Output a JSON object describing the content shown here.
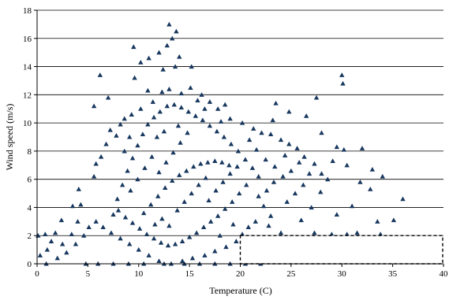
{
  "chart_data": {
    "type": "scatter",
    "title": "",
    "xlabel": "Temperature (C)",
    "ylabel": "Wind speed (m/s)",
    "xlim": [
      0,
      40
    ],
    "ylim": [
      0,
      18
    ],
    "xticks": [
      "0",
      "5",
      "10",
      "15",
      "20",
      "25",
      "30",
      "35",
      "40"
    ],
    "yticks": [
      "0",
      "2",
      "4",
      "6",
      "8",
      "10",
      "12",
      "14",
      "16",
      "18"
    ],
    "grid": "horizontal",
    "legend": "none",
    "marker": "triangle",
    "marker_color": "#17375e",
    "highlight_region": {
      "x": [
        20,
        40
      ],
      "y": [
        0,
        2
      ],
      "style": "dashed"
    },
    "series": [
      {
        "points": [
          [
            13.0,
            17.0
          ],
          [
            13.3,
            16.0
          ],
          [
            13.7,
            16.5
          ],
          [
            12.8,
            15.5
          ],
          [
            9.5,
            15.4
          ],
          [
            12.0,
            15.0
          ],
          [
            14.0,
            14.7
          ],
          [
            11.0,
            14.6
          ],
          [
            10.2,
            14.3
          ],
          [
            15.2,
            14.0
          ],
          [
            13.6,
            14.0
          ],
          [
            12.4,
            13.8
          ],
          [
            6.2,
            13.4
          ],
          [
            30.0,
            13.4
          ],
          [
            9.6,
            13.2
          ],
          [
            30.1,
            12.8
          ],
          [
            10.9,
            12.3
          ],
          [
            7.0,
            11.8
          ],
          [
            27.5,
            11.8
          ],
          [
            23.5,
            11.4
          ],
          [
            5.6,
            11.2
          ],
          [
            18.5,
            11.3
          ],
          [
            24.8,
            10.8
          ],
          [
            26.5,
            10.5
          ],
          [
            23.2,
            10.2
          ],
          [
            28.0,
            9.3
          ],
          [
            29.5,
            8.3
          ],
          [
            30.2,
            8.1
          ],
          [
            32.0,
            8.2
          ],
          [
            29.1,
            7.3
          ],
          [
            30.5,
            7.0
          ],
          [
            33.0,
            6.7
          ],
          [
            34.0,
            6.2
          ],
          [
            31.8,
            5.8
          ],
          [
            32.8,
            5.3
          ],
          [
            27.9,
            5.1
          ],
          [
            27.0,
            4.0
          ],
          [
            31.0,
            4.1
          ],
          [
            29.5,
            3.5
          ],
          [
            36.0,
            4.6
          ],
          [
            35.1,
            3.1
          ],
          [
            33.5,
            3.0
          ],
          [
            26.0,
            3.1
          ],
          [
            29.0,
            2.1
          ],
          [
            30.5,
            2.1
          ],
          [
            27.3,
            2.2
          ],
          [
            24.0,
            2.2
          ],
          [
            31.5,
            2.2
          ],
          [
            33.8,
            2.1
          ],
          [
            25.2,
            1.9
          ],
          [
            20.5,
            1.1
          ],
          [
            22.8,
            0.6
          ],
          [
            25.6,
            0.5
          ],
          [
            27.0,
            0.5
          ],
          [
            28.5,
            0.6
          ],
          [
            1.0,
            1.0
          ],
          [
            2.5,
            1.4
          ],
          [
            1.8,
            2.2
          ],
          [
            3.4,
            2.1
          ],
          [
            4.0,
            3.0
          ],
          [
            2.4,
            3.1
          ],
          [
            3.5,
            4.1
          ],
          [
            4.3,
            4.2
          ],
          [
            4.1,
            5.3
          ],
          [
            5.6,
            6.2
          ],
          [
            5.8,
            7.1
          ],
          [
            6.3,
            7.6
          ],
          [
            6.8,
            8.5
          ],
          [
            7.8,
            9.1
          ],
          [
            7.2,
            9.5
          ],
          [
            8.2,
            9.9
          ],
          [
            8.6,
            10.3
          ],
          [
            9.3,
            10.6
          ],
          [
            10.2,
            11.0
          ],
          [
            11.4,
            11.5
          ],
          [
            12.3,
            12.2
          ],
          [
            13.0,
            12.4
          ],
          [
            14.2,
            12.1
          ],
          [
            15.1,
            12.5
          ],
          [
            16.2,
            12.0
          ],
          [
            17.0,
            11.5
          ],
          [
            17.8,
            11.0
          ],
          [
            19.0,
            10.3
          ],
          [
            20.2,
            10.0
          ],
          [
            21.3,
            9.6
          ],
          [
            22.1,
            9.3
          ],
          [
            23.0,
            9.2
          ],
          [
            24.0,
            8.8
          ],
          [
            24.8,
            8.5
          ],
          [
            25.6,
            8.2
          ],
          [
            26.3,
            7.6
          ],
          [
            27.3,
            7.1
          ],
          [
            28.0,
            6.4
          ],
          [
            28.6,
            6.0
          ],
          [
            25.0,
            6.6
          ],
          [
            24.2,
            6.2
          ],
          [
            23.3,
            5.8
          ],
          [
            22.6,
            5.2
          ],
          [
            21.8,
            4.8
          ],
          [
            22.3,
            4.1
          ],
          [
            23.0,
            3.4
          ],
          [
            21.5,
            3.0
          ],
          [
            20.8,
            2.6
          ],
          [
            20.2,
            2.1
          ],
          [
            19.6,
            1.6
          ],
          [
            18.6,
            1.2
          ],
          [
            17.5,
            0.9
          ],
          [
            16.5,
            0.6
          ],
          [
            15.3,
            0.4
          ],
          [
            14.3,
            0.2
          ],
          [
            13.2,
            0.0
          ],
          [
            12.0,
            0.2
          ],
          [
            11.0,
            0.6
          ],
          [
            10.0,
            1.0
          ],
          [
            9.1,
            1.4
          ],
          [
            8.2,
            1.8
          ],
          [
            7.3,
            2.2
          ],
          [
            6.5,
            2.6
          ],
          [
            5.8,
            3.0
          ],
          [
            5.1,
            2.6
          ],
          [
            4.6,
            2.0
          ],
          [
            3.8,
            1.4
          ],
          [
            2.9,
            0.8
          ],
          [
            2.0,
            0.4
          ],
          [
            0.9,
            0.0
          ],
          [
            0.3,
            0.6
          ],
          [
            0.1,
            2.0
          ],
          [
            0.8,
            2.1
          ],
          [
            1.4,
            1.6
          ],
          [
            4.8,
            0.0
          ],
          [
            6.0,
            0.0
          ],
          [
            7.5,
            0.0
          ],
          [
            9.0,
            0.0
          ],
          [
            10.5,
            0.0
          ],
          [
            12.5,
            0.0
          ],
          [
            14.5,
            0.0
          ],
          [
            16.0,
            0.0
          ],
          [
            17.5,
            0.0
          ],
          [
            19.0,
            0.0
          ],
          [
            20.5,
            0.0
          ],
          [
            22.0,
            0.0
          ],
          [
            7.5,
            3.5
          ],
          [
            7.9,
            4.6
          ],
          [
            8.4,
            5.6
          ],
          [
            8.9,
            6.6
          ],
          [
            9.4,
            7.5
          ],
          [
            9.9,
            8.4
          ],
          [
            10.4,
            9.2
          ],
          [
            10.9,
            9.9
          ],
          [
            11.5,
            10.4
          ],
          [
            12.1,
            10.8
          ],
          [
            12.8,
            11.2
          ],
          [
            13.5,
            11.3
          ],
          [
            14.2,
            11.1
          ],
          [
            14.9,
            10.8
          ],
          [
            15.6,
            10.5
          ],
          [
            16.3,
            10.2
          ],
          [
            17.0,
            9.8
          ],
          [
            17.7,
            9.4
          ],
          [
            18.4,
            9.0
          ],
          [
            19.1,
            8.5
          ],
          [
            19.8,
            8.0
          ],
          [
            20.5,
            7.4
          ],
          [
            21.2,
            6.8
          ],
          [
            21.8,
            6.2
          ],
          [
            20.6,
            5.6
          ],
          [
            19.9,
            5.0
          ],
          [
            19.2,
            4.4
          ],
          [
            18.5,
            3.9
          ],
          [
            17.8,
            3.4
          ],
          [
            17.1,
            3.0
          ],
          [
            16.4,
            2.6
          ],
          [
            15.7,
            2.2
          ],
          [
            15.0,
            1.9
          ],
          [
            14.3,
            1.6
          ],
          [
            13.6,
            1.4
          ],
          [
            12.9,
            1.3
          ],
          [
            12.2,
            1.5
          ],
          [
            11.5,
            1.8
          ],
          [
            10.8,
            2.1
          ],
          [
            10.1,
            2.5
          ],
          [
            9.4,
            2.9
          ],
          [
            8.7,
            3.3
          ],
          [
            8.0,
            3.8
          ],
          [
            10.5,
            3.6
          ],
          [
            11.2,
            4.2
          ],
          [
            11.9,
            4.8
          ],
          [
            12.6,
            5.4
          ],
          [
            13.3,
            5.9
          ],
          [
            14.0,
            6.3
          ],
          [
            14.7,
            6.6
          ],
          [
            15.4,
            6.9
          ],
          [
            16.1,
            7.1
          ],
          [
            16.8,
            7.2
          ],
          [
            17.5,
            7.3
          ],
          [
            18.2,
            7.2
          ],
          [
            18.9,
            7.0
          ],
          [
            12.0,
            6.5
          ],
          [
            12.7,
            7.2
          ],
          [
            13.4,
            7.9
          ],
          [
            14.1,
            8.6
          ],
          [
            14.8,
            9.3
          ],
          [
            11.3,
            7.6
          ],
          [
            10.6,
            6.8
          ],
          [
            9.9,
            6.0
          ],
          [
            9.2,
            5.2
          ],
          [
            13.8,
            3.8
          ],
          [
            14.5,
            4.4
          ],
          [
            15.2,
            5.0
          ],
          [
            15.9,
            5.6
          ],
          [
            16.6,
            6.1
          ],
          [
            12.3,
            3.2
          ],
          [
            13.0,
            2.7
          ],
          [
            11.6,
            2.8
          ],
          [
            16.9,
            4.5
          ],
          [
            17.6,
            5.2
          ],
          [
            18.3,
            5.8
          ],
          [
            19.0,
            6.4
          ],
          [
            19.7,
            6.9
          ],
          [
            8.6,
            8.0
          ],
          [
            9.1,
            9.0
          ],
          [
            15.8,
            11.6
          ],
          [
            16.5,
            11.0
          ],
          [
            18.1,
            10.1
          ],
          [
            13.9,
            9.8
          ],
          [
            12.5,
            9.4
          ],
          [
            11.8,
            9.0
          ],
          [
            20.9,
            8.8
          ],
          [
            21.6,
            8.1
          ],
          [
            22.5,
            7.4
          ],
          [
            23.4,
            6.9
          ],
          [
            24.4,
            7.7
          ],
          [
            25.8,
            7.2
          ],
          [
            26.8,
            6.4
          ],
          [
            22.8,
            2.7
          ],
          [
            24.6,
            4.4
          ],
          [
            25.4,
            5.0
          ],
          [
            26.2,
            5.6
          ],
          [
            18.0,
            2.0
          ],
          [
            19.3,
            2.8
          ]
        ]
      }
    ]
  }
}
